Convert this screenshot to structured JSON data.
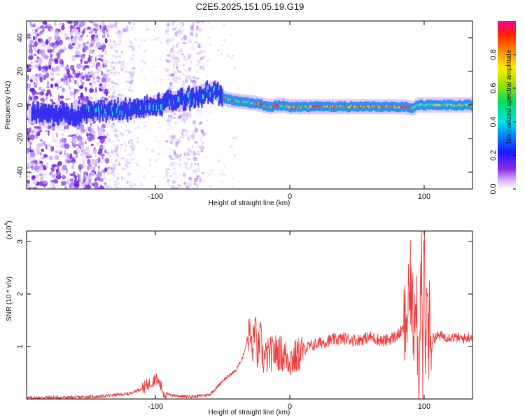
{
  "title": "C2E5.2025.151.05.19.G19",
  "colors": {
    "spectrogram_base": "#8a2be2",
    "snr_line": "#ee3a3a",
    "axis": "#000000"
  },
  "chart_data": [
    {
      "type": "heatmap",
      "name": "spectrogram",
      "xlabel": "Height of straight line (km)",
      "ylabel": "Frequency (Hz)",
      "xlim": [
        -196,
        136
      ],
      "ylim": [
        -50,
        50
      ],
      "xticks": [
        -100,
        0,
        100
      ],
      "xtick_labels": [
        "-100",
        "0",
        "100"
      ],
      "yticks": [
        -40,
        -20,
        0,
        20,
        40
      ],
      "ytick_labels": [
        "-40",
        "-20",
        "0",
        "20",
        "40"
      ],
      "colorbar": {
        "label": "Normalized spectral amplitude",
        "range": [
          0,
          1
        ],
        "ticks": [
          0,
          0.2,
          0.4,
          0.6,
          0.8
        ],
        "tick_labels": [
          "0.0",
          "0.2",
          "0.4",
          "0.6",
          "0.8"
        ],
        "colormap": "rainbow"
      },
      "ridge": {
        "x": [
          -190,
          -160,
          -150,
          -130,
          -110,
          -90,
          -75,
          -62,
          -55,
          -52,
          -45,
          -35,
          -25,
          -15,
          -5,
          0,
          10,
          30,
          60,
          85,
          92,
          95,
          100,
          110,
          136
        ],
        "y": [
          -5,
          -6,
          -4,
          -3,
          -2,
          2,
          4,
          7,
          9,
          5,
          3,
          2,
          1,
          -1,
          0,
          -1,
          -1,
          -1,
          -1,
          -1,
          -2,
          0,
          0,
          0,
          0
        ]
      },
      "grid": false,
      "legend": "none"
    },
    {
      "type": "line",
      "name": "snr",
      "xlabel": "Height of straight line (km)",
      "ylabel": "SNR (10 * v/v)",
      "y_multiplier_label": "(x10",
      "y_multiplier_exp": "4",
      "xlim": [
        -196,
        136
      ],
      "ylim": [
        0,
        3.2
      ],
      "xticks": [
        -100,
        0,
        100
      ],
      "xtick_labels": [
        "-100",
        "0",
        "100"
      ],
      "yticks": [
        1,
        2,
        3
      ],
      "ytick_labels": [
        "1",
        "2",
        "3"
      ],
      "x": [
        -196,
        -180,
        -160,
        -140,
        -120,
        -110,
        -104,
        -100,
        -97,
        -94,
        -90,
        -80,
        -70,
        -60,
        -55,
        -50,
        -45,
        -40,
        -35,
        -30,
        -28,
        -26,
        -24,
        -22,
        -20,
        -15,
        -10,
        -5,
        0,
        5,
        10,
        20,
        30,
        40,
        50,
        60,
        70,
        80,
        85,
        88,
        90,
        92,
        94,
        96,
        97,
        98,
        99,
        100,
        101,
        102,
        103,
        104,
        106,
        110,
        120,
        130,
        136
      ],
      "y": [
        0.02,
        0.03,
        0.03,
        0.05,
        0.1,
        0.2,
        0.3,
        0.4,
        0.3,
        0.12,
        0.08,
        0.05,
        0.05,
        0.08,
        0.2,
        0.35,
        0.45,
        0.55,
        0.8,
        1.3,
        0.9,
        1.45,
        0.8,
        1.2,
        0.75,
        0.85,
        0.9,
        0.85,
        0.75,
        0.8,
        0.95,
        1.05,
        1.12,
        1.15,
        1.12,
        1.18,
        1.1,
        1.2,
        1.35,
        1.6,
        2.2,
        1.3,
        2.4,
        0.1,
        1.9,
        2.7,
        0.05,
        3.2,
        0.2,
        2.5,
        1.1,
        1.4,
        1.15,
        1.2,
        1.18,
        1.15,
        1.2
      ],
      "grid": false,
      "legend": "none"
    }
  ]
}
